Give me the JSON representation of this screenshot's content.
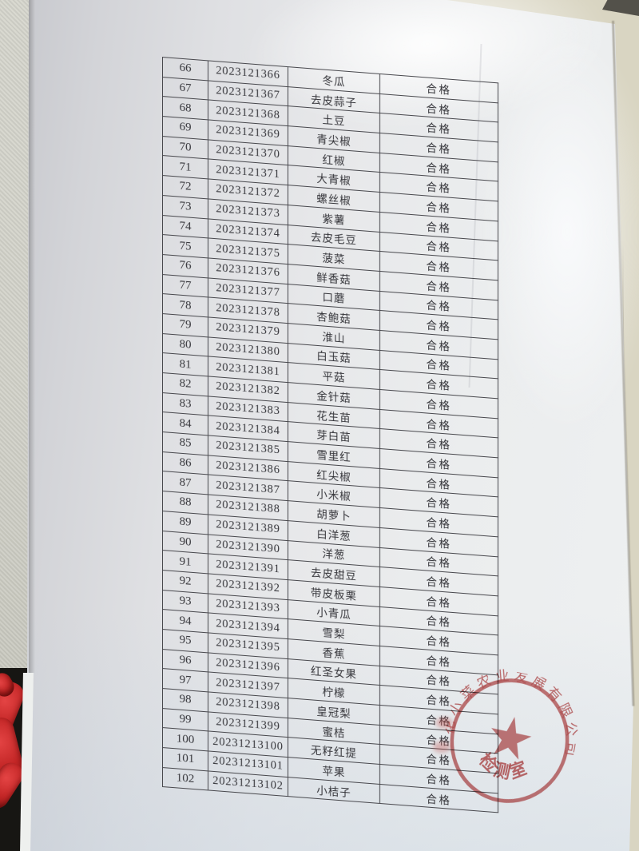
{
  "table": {
    "rows": [
      [
        "66",
        "2023121366",
        "冬瓜",
        "合格"
      ],
      [
        "67",
        "2023121367",
        "去皮蒜子",
        "合格"
      ],
      [
        "68",
        "2023121368",
        "土豆",
        "合格"
      ],
      [
        "69",
        "2023121369",
        "青尖椒",
        "合格"
      ],
      [
        "70",
        "2023121370",
        "红椒",
        "合格"
      ],
      [
        "71",
        "2023121371",
        "大青椒",
        "合格"
      ],
      [
        "72",
        "2023121372",
        "螺丝椒",
        "合格"
      ],
      [
        "73",
        "2023121373",
        "紫薯",
        "合格"
      ],
      [
        "74",
        "2023121374",
        "去皮毛豆",
        "合格"
      ],
      [
        "75",
        "2023121375",
        "菠菜",
        "合格"
      ],
      [
        "76",
        "2023121376",
        "鲜香菇",
        "合格"
      ],
      [
        "77",
        "2023121377",
        "口蘑",
        "合格"
      ],
      [
        "78",
        "2023121378",
        "杏鲍菇",
        "合格"
      ],
      [
        "79",
        "2023121379",
        "淮山",
        "合格"
      ],
      [
        "80",
        "2023121380",
        "白玉菇",
        "合格"
      ],
      [
        "81",
        "2023121381",
        "平菇",
        "合格"
      ],
      [
        "82",
        "2023121382",
        "金针菇",
        "合格"
      ],
      [
        "83",
        "2023121383",
        "花生苗",
        "合格"
      ],
      [
        "84",
        "2023121384",
        "芽白苗",
        "合格"
      ],
      [
        "85",
        "2023121385",
        "雪里红",
        "合格"
      ],
      [
        "86",
        "2023121386",
        "红尖椒",
        "合格"
      ],
      [
        "87",
        "2023121387",
        "小米椒",
        "合格"
      ],
      [
        "88",
        "2023121388",
        "胡萝卜",
        "合格"
      ],
      [
        "89",
        "2023121389",
        "白洋葱",
        "合格"
      ],
      [
        "90",
        "2023121390",
        "洋葱",
        "合格"
      ],
      [
        "91",
        "2023121391",
        "去皮甜豆",
        "合格"
      ],
      [
        "92",
        "2023121392",
        "带皮板栗",
        "合格"
      ],
      [
        "93",
        "2023121393",
        "小青瓜",
        "合格"
      ],
      [
        "94",
        "2023121394",
        "雪梨",
        "合格"
      ],
      [
        "95",
        "2023121395",
        "香蕉",
        "合格"
      ],
      [
        "96",
        "2023121396",
        "红圣女果",
        "合格"
      ],
      [
        "97",
        "2023121397",
        "柠檬",
        "合格"
      ],
      [
        "98",
        "2023121398",
        "皇冠梨",
        "合格"
      ],
      [
        "99",
        "2023121399",
        "蜜桔",
        "合格"
      ],
      [
        "100",
        "20231213100",
        "无籽红提",
        "合格"
      ],
      [
        "101",
        "20231213101",
        "苹果",
        "合格"
      ],
      [
        "102",
        "20231213102",
        "小桔子",
        "合格"
      ]
    ]
  },
  "stamp": {
    "arc_text": "花小菜农业发展有限公司",
    "bottom_text": "检测室",
    "color": "#b94040"
  },
  "colors": {
    "paper": "#e7e8ea",
    "table_line": "#47474c",
    "text": "#35353a",
    "background_beige": "#d9d5c2",
    "fabric_red": "#c32626",
    "stamp_red": "#b94040"
  }
}
